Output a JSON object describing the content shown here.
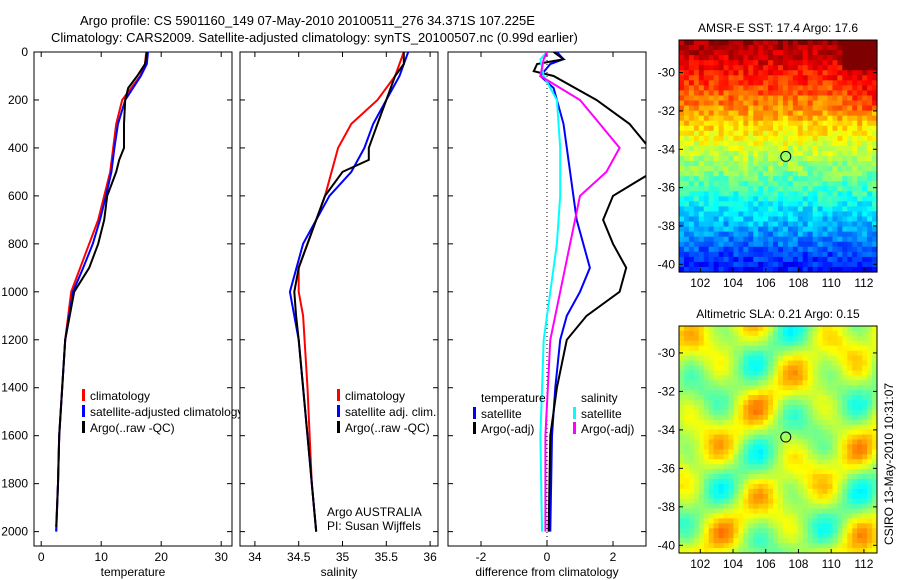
{
  "title": {
    "line1": "Argo profile: CS 5901160_149 07-May-2010 20100511_276 34.371S 107.225E",
    "line2": "Climatology: CARS2009. Satellite-adjusted climatology: synTS_20100507.nc (0.99d earlier)"
  },
  "side_label": "CSIRO 13-May-2010 10:31:07",
  "colors": {
    "red": "#ff0000",
    "blue": "#0000ff",
    "black": "#000000",
    "cyan": "#00ffff",
    "magenta": "#ff00ff"
  },
  "chart_data": [
    {
      "type": "line",
      "id": "temperature",
      "xlabel": "temperature",
      "ylabel": "",
      "xlim": [
        -1.2,
        31.8
      ],
      "ylim": [
        0,
        2060
      ],
      "y_reversed": true,
      "xticks": [
        0,
        10,
        20,
        30
      ],
      "yticks": [
        0,
        200,
        400,
        600,
        800,
        1000,
        1200,
        1400,
        1600,
        1800,
        2000
      ],
      "legend": [
        "climatology",
        "satellite-adjusted climatology",
        "Argo(..raw -QC)"
      ],
      "series": [
        {
          "name": "climatology",
          "color": "red",
          "points": [
            [
              0,
              17.5
            ],
            [
              50,
              17.3
            ],
            [
              100,
              16.5
            ],
            [
              200,
              13.5
            ],
            [
              300,
              12.5
            ],
            [
              400,
              12
            ],
            [
              500,
              11.5
            ],
            [
              600,
              10.5
            ],
            [
              700,
              9.5
            ],
            [
              800,
              8
            ],
            [
              900,
              6.5
            ],
            [
              1000,
              5
            ],
            [
              1200,
              4
            ],
            [
              1400,
              3.5
            ],
            [
              1600,
              3
            ],
            [
              1800,
              2.8
            ],
            [
              2000,
              2.5
            ]
          ]
        },
        {
          "name": "satellite-adjusted climatology",
          "color": "blue",
          "points": [
            [
              0,
              17.8
            ],
            [
              50,
              17.6
            ],
            [
              100,
              16.6
            ],
            [
              200,
              14
            ],
            [
              300,
              12.8
            ],
            [
              400,
              12.2
            ],
            [
              500,
              11.7
            ],
            [
              600,
              10.8
            ],
            [
              700,
              9.8
            ],
            [
              800,
              8.6
            ],
            [
              900,
              7
            ],
            [
              1000,
              5.3
            ],
            [
              1200,
              4
            ],
            [
              1400,
              3.5
            ],
            [
              1600,
              3
            ],
            [
              1800,
              2.8
            ],
            [
              2000,
              2.5
            ]
          ]
        },
        {
          "name": "Argo(..raw -QC)",
          "color": "black",
          "points": [
            [
              0,
              17.6
            ],
            [
              20,
              17.5
            ],
            [
              50,
              17.3
            ],
            [
              100,
              16
            ],
            [
              150,
              14.5
            ],
            [
              200,
              14
            ],
            [
              300,
              13.8
            ],
            [
              400,
              13.8
            ],
            [
              450,
              13
            ],
            [
              500,
              12.5
            ],
            [
              600,
              11
            ],
            [
              700,
              10.5
            ],
            [
              800,
              9.5
            ],
            [
              900,
              8
            ],
            [
              1000,
              5.5
            ],
            [
              1200,
              4
            ],
            [
              1400,
              3.5
            ],
            [
              1600,
              3
            ],
            [
              1800,
              2.8
            ],
            [
              1980,
              2.5
            ]
          ]
        }
      ]
    },
    {
      "type": "line",
      "id": "salinity",
      "xlabel": "salinity",
      "ylabel": "",
      "xlim": [
        33.83,
        36.09
      ],
      "ylim": [
        0,
        2060
      ],
      "y_reversed": true,
      "xticks": [
        34,
        34.5,
        35,
        35.5,
        36
      ],
      "legend": [
        "climatology",
        "satellite adj. clim.",
        "Argo(..raw -QC)"
      ],
      "annotation": [
        "Argo AUSTRALIA",
        "PI: Susan Wijffels"
      ],
      "series": [
        {
          "name": "climatology",
          "color": "red",
          "points": [
            [
              0,
              35.7
            ],
            [
              100,
              35.6
            ],
            [
              200,
              35.4
            ],
            [
              300,
              35.1
            ],
            [
              400,
              34.95
            ],
            [
              600,
              34.8
            ],
            [
              800,
              34.6
            ],
            [
              900,
              34.5
            ],
            [
              1000,
              34.5
            ],
            [
              1100,
              34.55
            ],
            [
              1400,
              34.6
            ],
            [
              1800,
              34.65
            ],
            [
              2000,
              34.7
            ]
          ]
        },
        {
          "name": "satellite adj. clim.",
          "color": "blue",
          "points": [
            [
              0,
              35.75
            ],
            [
              100,
              35.65
            ],
            [
              200,
              35.5
            ],
            [
              300,
              35.35
            ],
            [
              400,
              35.25
            ],
            [
              500,
              35.1
            ],
            [
              600,
              34.85
            ],
            [
              800,
              34.55
            ],
            [
              1000,
              34.4
            ],
            [
              1200,
              34.5
            ],
            [
              1600,
              34.6
            ],
            [
              2000,
              34.7
            ]
          ]
        },
        {
          "name": "Argo(..raw -QC)",
          "color": "black",
          "points": [
            [
              0,
              35.7
            ],
            [
              50,
              35.7
            ],
            [
              100,
              35.6
            ],
            [
              200,
              35.5
            ],
            [
              300,
              35.4
            ],
            [
              400,
              35.3
            ],
            [
              450,
              35.3
            ],
            [
              500,
              35.0
            ],
            [
              600,
              34.8
            ],
            [
              700,
              34.7
            ],
            [
              800,
              34.6
            ],
            [
              900,
              34.5
            ],
            [
              1000,
              34.45
            ],
            [
              1100,
              34.47
            ],
            [
              1200,
              34.5
            ],
            [
              1400,
              34.55
            ],
            [
              1600,
              34.6
            ],
            [
              1800,
              34.65
            ],
            [
              2000,
              34.7
            ]
          ]
        }
      ]
    },
    {
      "type": "line",
      "id": "difference",
      "xlabel": "difference from climatology",
      "xlim": [
        -3,
        3
      ],
      "ylim": [
        0,
        2060
      ],
      "y_reversed": true,
      "xticks": [
        -2,
        0,
        2
      ],
      "legend_headers": [
        "temperature",
        "salinity"
      ],
      "legend": [
        "satellite",
        "Argo(-adj)",
        "satellite",
        "Argo(-adj)"
      ],
      "series": [
        {
          "name": "temperature satellite",
          "color": "blue",
          "points": [
            [
              0,
              0.3
            ],
            [
              30,
              0.5
            ],
            [
              50,
              0.1
            ],
            [
              100,
              -0.2
            ],
            [
              150,
              0.2
            ],
            [
              300,
              0.5
            ],
            [
              500,
              0.7
            ],
            [
              700,
              0.9
            ],
            [
              900,
              1.3
            ],
            [
              1000,
              1
            ],
            [
              1100,
              0.6
            ],
            [
              1200,
              0.4
            ],
            [
              1400,
              0.25
            ],
            [
              1600,
              0.15
            ],
            [
              2000,
              0.1
            ]
          ]
        },
        {
          "name": "temperature Argo(-adj)",
          "color": "black",
          "points": [
            [
              0,
              0.2
            ],
            [
              30,
              0.5
            ],
            [
              50,
              -0.3
            ],
            [
              80,
              -0.4
            ],
            [
              100,
              0.2
            ],
            [
              200,
              1.5
            ],
            [
              300,
              2.5
            ],
            [
              400,
              3.1
            ],
            [
              500,
              3.2
            ],
            [
              600,
              2
            ],
            [
              700,
              1.7
            ],
            [
              800,
              2
            ],
            [
              900,
              2.4
            ],
            [
              1000,
              2.2
            ],
            [
              1100,
              1.2
            ],
            [
              1200,
              0.6
            ],
            [
              1400,
              0.3
            ],
            [
              1600,
              0.1
            ],
            [
              2000,
              0.05
            ]
          ]
        },
        {
          "name": "salinity satellite",
          "color": "cyan",
          "points": [
            [
              0,
              0
            ],
            [
              30,
              -0.2
            ],
            [
              100,
              -0.1
            ],
            [
              200,
              0.3
            ],
            [
              400,
              0.4
            ],
            [
              600,
              0.4
            ],
            [
              800,
              0.3
            ],
            [
              1000,
              0.1
            ],
            [
              1200,
              -0.1
            ],
            [
              1600,
              -0.2
            ],
            [
              2000,
              -0.15
            ]
          ]
        },
        {
          "name": "salinity Argo(-adj)",
          "color": "magenta",
          "points": [
            [
              0,
              0
            ],
            [
              30,
              -0.1
            ],
            [
              100,
              -0.2
            ],
            [
              200,
              1
            ],
            [
              300,
              1.6
            ],
            [
              400,
              2.2
            ],
            [
              500,
              1.8
            ],
            [
              600,
              1
            ],
            [
              800,
              0.7
            ],
            [
              1000,
              0.4
            ],
            [
              1200,
              0.1
            ],
            [
              1600,
              -0.05
            ],
            [
              2000,
              -0.05
            ]
          ]
        }
      ]
    },
    {
      "type": "heatmap",
      "id": "sst_map",
      "title": "AMSR-E SST: 17.4  Argo: 17.6",
      "xlim": [
        100.7,
        112.8
      ],
      "ylim": [
        -40.4,
        -28.3
      ],
      "xticks": [
        102,
        104,
        106,
        108,
        110,
        112
      ],
      "yticks": [
        -30,
        -32,
        -34,
        -36,
        -38,
        -40
      ],
      "marker": [
        107.225,
        -34.371
      ]
    },
    {
      "type": "heatmap",
      "id": "sla_map",
      "title": "Altimetric SLA: 0.21  Argo: 0.15",
      "xlim": [
        100.7,
        112.8
      ],
      "ylim": [
        -40.4,
        -28.6
      ],
      "xticks": [
        102,
        104,
        106,
        108,
        110,
        112
      ],
      "yticks": [
        -30,
        -32,
        -34,
        -36,
        -38,
        -40
      ],
      "marker": [
        107.225,
        -34.371
      ]
    }
  ]
}
